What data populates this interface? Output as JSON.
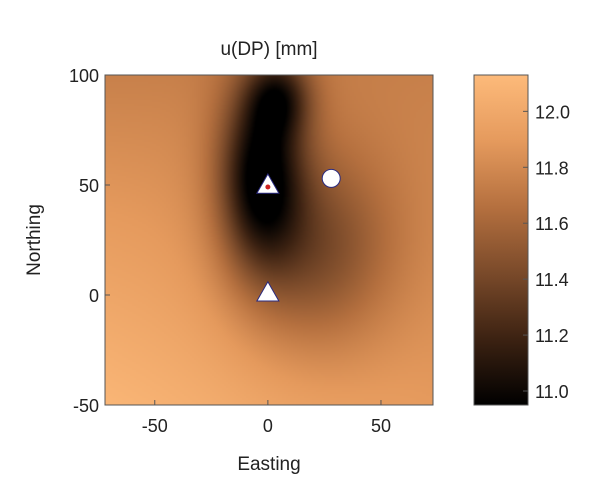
{
  "chart_data": {
    "type": "heatmap",
    "title": "u(DP) [mm]",
    "xlabel": "Easting",
    "ylabel": "Northing",
    "xlim": [
      -72,
      73
    ],
    "ylim": [
      -50,
      100
    ],
    "x_ticks": [
      {
        "value": -50,
        "label": "-50"
      },
      {
        "value": 0,
        "label": "0"
      },
      {
        "value": 50,
        "label": "50"
      }
    ],
    "y_ticks": [
      {
        "value": 100,
        "label": "100"
      },
      {
        "value": 50,
        "label": "50"
      },
      {
        "value": 0,
        "label": "0"
      },
      {
        "value": -50,
        "label": "-50"
      }
    ],
    "colorbar": {
      "range": [
        10.95,
        12.13
      ],
      "ticks": [
        {
          "value": 12.0,
          "label": "12.0"
        },
        {
          "value": 11.8,
          "label": "11.8"
        },
        {
          "value": 11.6,
          "label": "11.6"
        },
        {
          "value": 11.4,
          "label": "11.4"
        },
        {
          "value": 11.2,
          "label": "11.2"
        },
        {
          "value": 11.0,
          "label": "11.0"
        }
      ],
      "colormap": [
        "#000000",
        "#3c2212",
        "#7a4a2a",
        "#b5703f",
        "#e59a5d",
        "#fdba7a"
      ]
    },
    "field": {
      "description_values": "approximate u(DP) field; minimum ~11.0 near (0, 55) and (0, 30), maximum ~12.1 at lower-left corner",
      "corner_values": {
        "lower_left": 12.1,
        "lower_right": 11.9,
        "upper_left": 11.75,
        "upper_right": 11.75
      }
    },
    "markers": [
      {
        "shape": "triangle",
        "x": 0,
        "y": 50,
        "color": "#ffffff",
        "inner_dot_color": "#cc2222"
      },
      {
        "shape": "circle",
        "x": 28,
        "y": 53,
        "color": "#ffffff"
      },
      {
        "shape": "triangle",
        "x": 0,
        "y": 1,
        "color": "#ffffff"
      }
    ]
  }
}
